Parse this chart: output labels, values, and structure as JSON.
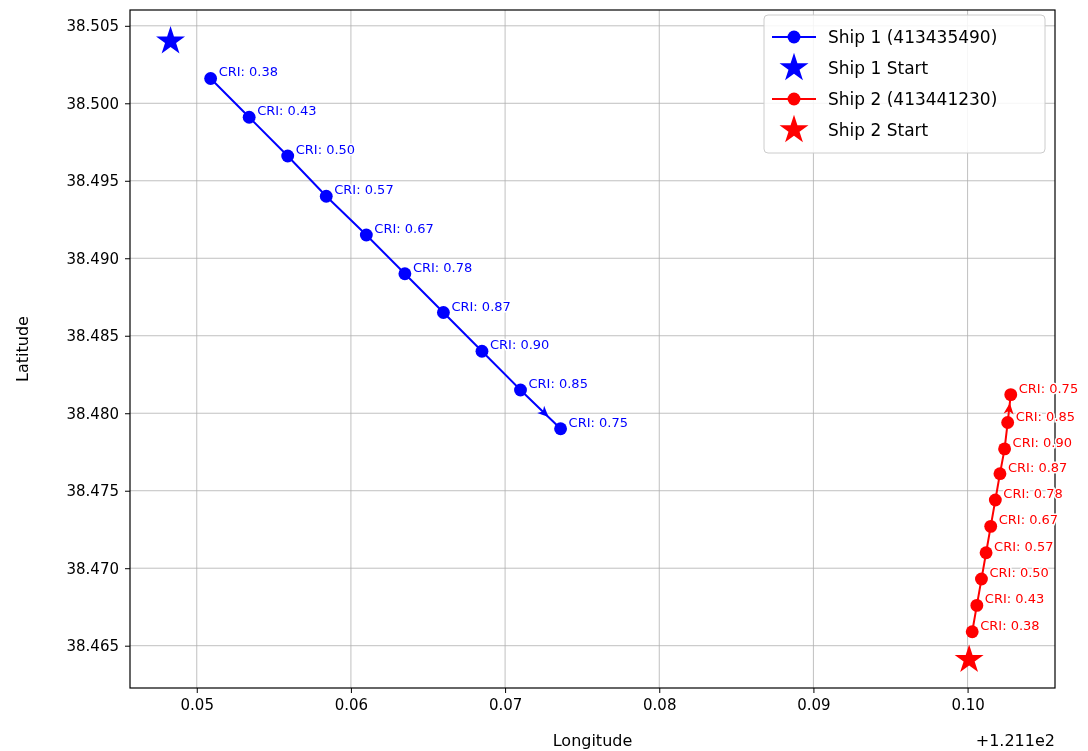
{
  "chart_data": {
    "type": "line",
    "xlabel": "Longitude",
    "ylabel": "Latitude",
    "xlim": [
      0.04567,
      0.10567
    ],
    "ylim": [
      38.46227,
      38.50602
    ],
    "xticks": [
      {
        "value": 0.05,
        "label": "0.05"
      },
      {
        "value": 0.06,
        "label": "0.06"
      },
      {
        "value": 0.07,
        "label": "0.07"
      },
      {
        "value": 0.08,
        "label": "0.08"
      },
      {
        "value": 0.09,
        "label": "0.09"
      },
      {
        "value": 0.1,
        "label": "0.10"
      }
    ],
    "yticks": [
      {
        "value": 38.465,
        "label": "38.465"
      },
      {
        "value": 38.47,
        "label": "38.470"
      },
      {
        "value": 38.475,
        "label": "38.475"
      },
      {
        "value": 38.48,
        "label": "38.480"
      },
      {
        "value": 38.485,
        "label": "38.485"
      },
      {
        "value": 38.49,
        "label": "38.490"
      },
      {
        "value": 38.495,
        "label": "38.495"
      },
      {
        "value": 38.5,
        "label": "38.500"
      },
      {
        "value": 38.505,
        "label": "38.505"
      }
    ],
    "grid": true,
    "legend": "top right",
    "series": [
      {
        "name": "Ship 1 (413435490)",
        "marker": "circle",
        "color": "#0000ff",
        "x": [
          0.0509,
          0.0534,
          0.0559,
          0.0584,
          0.061,
          0.0635,
          0.066,
          0.0685,
          0.071,
          0.0736
        ],
        "values": [
          38.5016,
          38.4991,
          38.4966,
          38.494,
          38.4915,
          38.489,
          38.4865,
          38.484,
          38.4815,
          38.479
        ]
      },
      {
        "name": "Ship 1 Start",
        "type": "scatter",
        "marker": "star",
        "color": "#0000ff",
        "x": [
          0.0483
        ],
        "values": [
          38.504
        ]
      },
      {
        "name": "Ship 2 (413441230)",
        "marker": "circle",
        "color": "#ff0000",
        "x": [
          0.1003,
          0.1006,
          0.1009,
          0.1012,
          0.1015,
          0.1018,
          0.1021,
          0.1024,
          0.1026,
          0.1028
        ],
        "values": [
          38.4659,
          38.4676,
          38.4693,
          38.471,
          38.4727,
          38.4744,
          38.4761,
          38.4777,
          38.4794,
          38.4812
        ]
      },
      {
        "name": "Ship 2 Start",
        "type": "scatter",
        "marker": "star",
        "color": "#ff0000",
        "x": [
          0.1001
        ],
        "values": [
          38.4641
        ]
      }
    ],
    "annotations": [
      {
        "text": "CRI: 0.38",
        "x": 0.0509,
        "y": 38.5016
      },
      {
        "text": "CRI: 0.43",
        "x": 0.0534,
        "y": 38.4991
      },
      {
        "text": "CRI: 0.50",
        "x": 0.0559,
        "y": 38.4966
      },
      {
        "text": "CRI: 0.57",
        "x": 0.0584,
        "y": 38.494
      },
      {
        "text": "CRI: 0.67",
        "x": 0.061,
        "y": 38.4915
      },
      {
        "text": "CRI: 0.78",
        "x": 0.0635,
        "y": 38.489
      },
      {
        "text": "CRI: 0.87",
        "x": 0.066,
        "y": 38.4865
      },
      {
        "text": "CRI: 0.90",
        "x": 0.0685,
        "y": 38.484
      },
      {
        "text": "CRI: 0.85",
        "x": 0.071,
        "y": 38.4815
      },
      {
        "text": "CRI: 0.75",
        "x": 0.0736,
        "y": 38.479
      },
      {
        "text": "CRI: 0.38",
        "x": 0.1003,
        "y": 38.4659
      },
      {
        "text": "CRI: 0.43",
        "x": 0.1006,
        "y": 38.4676
      },
      {
        "text": "CRI: 0.50",
        "x": 0.1009,
        "y": 38.4693
      },
      {
        "text": "CRI: 0.57",
        "x": 0.1012,
        "y": 38.471
      },
      {
        "text": "CRI: 0.67",
        "x": 0.1015,
        "y": 38.4727
      },
      {
        "text": "CRI: 0.78",
        "x": 0.1018,
        "y": 38.4744
      },
      {
        "text": "CRI: 0.87",
        "x": 0.1021,
        "y": 38.4761
      },
      {
        "text": "CRI: 0.90",
        "x": 0.1024,
        "y": 38.4777
      },
      {
        "text": "CRI: 0.85",
        "x": 0.1026,
        "y": 38.4794
      },
      {
        "text": "CRI: 0.75",
        "x": 0.1028,
        "y": 38.4812
      },
      "+1.211e2"
    ]
  }
}
